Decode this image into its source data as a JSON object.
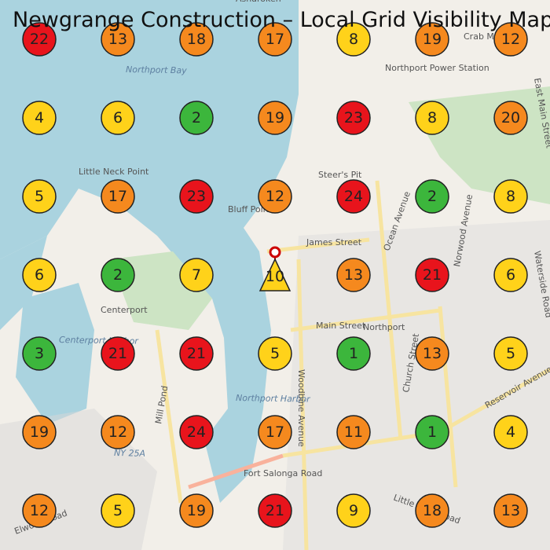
{
  "title": "Newgrange Construction – Local Grid Visibility Map",
  "grid": {
    "rows": [
      [
        {
          "value": 22,
          "color": "#e8141c"
        },
        {
          "value": 13,
          "color": "#f5891e"
        },
        {
          "value": 18,
          "color": "#f5891e"
        },
        {
          "value": 17,
          "color": "#f5891e"
        },
        {
          "value": 8,
          "color": "#ffd21a"
        },
        {
          "value": 19,
          "color": "#f5891e"
        },
        {
          "value": 12,
          "color": "#f5891e"
        }
      ],
      [
        {
          "value": 4,
          "color": "#ffd21a"
        },
        {
          "value": 6,
          "color": "#ffd21a"
        },
        {
          "value": 2,
          "color": "#3cb63c"
        },
        {
          "value": 19,
          "color": "#f5891e"
        },
        {
          "value": 23,
          "color": "#e8141c"
        },
        {
          "value": 8,
          "color": "#ffd21a"
        },
        {
          "value": 20,
          "color": "#f5891e"
        }
      ],
      [
        {
          "value": 5,
          "color": "#ffd21a"
        },
        {
          "value": 17,
          "color": "#f5891e"
        },
        {
          "value": 23,
          "color": "#e8141c"
        },
        {
          "value": 12,
          "color": "#f5891e"
        },
        {
          "value": 24,
          "color": "#e8141c"
        },
        {
          "value": 2,
          "color": "#3cb63c"
        },
        {
          "value": 8,
          "color": "#ffd21a"
        }
      ],
      [
        {
          "value": 6,
          "color": "#ffd21a"
        },
        {
          "value": 2,
          "color": "#3cb63c"
        },
        {
          "value": 7,
          "color": "#ffd21a"
        },
        {
          "value": 10,
          "color": "#ffd21a",
          "marker": "triangle"
        },
        {
          "value": 13,
          "color": "#f5891e"
        },
        {
          "value": 21,
          "color": "#e8141c"
        },
        {
          "value": 6,
          "color": "#ffd21a"
        }
      ],
      [
        {
          "value": 3,
          "color": "#3cb63c"
        },
        {
          "value": 21,
          "color": "#e8141c"
        },
        {
          "value": 21,
          "color": "#e8141c"
        },
        {
          "value": 5,
          "color": "#ffd21a"
        },
        {
          "value": 1,
          "color": "#3cb63c"
        },
        {
          "value": 13,
          "color": "#f5891e"
        },
        {
          "value": 5,
          "color": "#ffd21a"
        }
      ],
      [
        {
          "value": 19,
          "color": "#f5891e"
        },
        {
          "value": 12,
          "color": "#f5891e"
        },
        {
          "value": 24,
          "color": "#e8141c"
        },
        {
          "value": 17,
          "color": "#f5891e"
        },
        {
          "value": 11,
          "color": "#f5891e"
        },
        {
          "value": 1,
          "color": "#3cb63c"
        },
        {
          "value": 4,
          "color": "#ffd21a"
        }
      ],
      [
        {
          "value": 12,
          "color": "#f5891e"
        },
        {
          "value": 5,
          "color": "#ffd21a"
        },
        {
          "value": 19,
          "color": "#f5891e"
        },
        {
          "value": 21,
          "color": "#e8141c"
        },
        {
          "value": 9,
          "color": "#ffd21a"
        },
        {
          "value": 18,
          "color": "#f5891e"
        },
        {
          "value": 13,
          "color": "#f5891e"
        }
      ]
    ]
  },
  "map_labels": [
    "Asharoken",
    "Northport Bay",
    "Northport Power Station",
    "Crab Meadow",
    "Little Neck Point",
    "Steer's Pit",
    "Bluff Point",
    "James Street",
    "Centerport",
    "Centerport Harbor",
    "Northport Harbor",
    "Northport",
    "Main Street",
    "Woodbine Avenue",
    "Ocean Avenue",
    "Norwood Avenue",
    "Church Street",
    "Reservoir Avenue",
    "Fort Salonga Road",
    "NY 25A",
    "Mill Pond",
    "Little Neck Road",
    "Elwood Road",
    "East Main Street",
    "Waterside Road"
  ]
}
